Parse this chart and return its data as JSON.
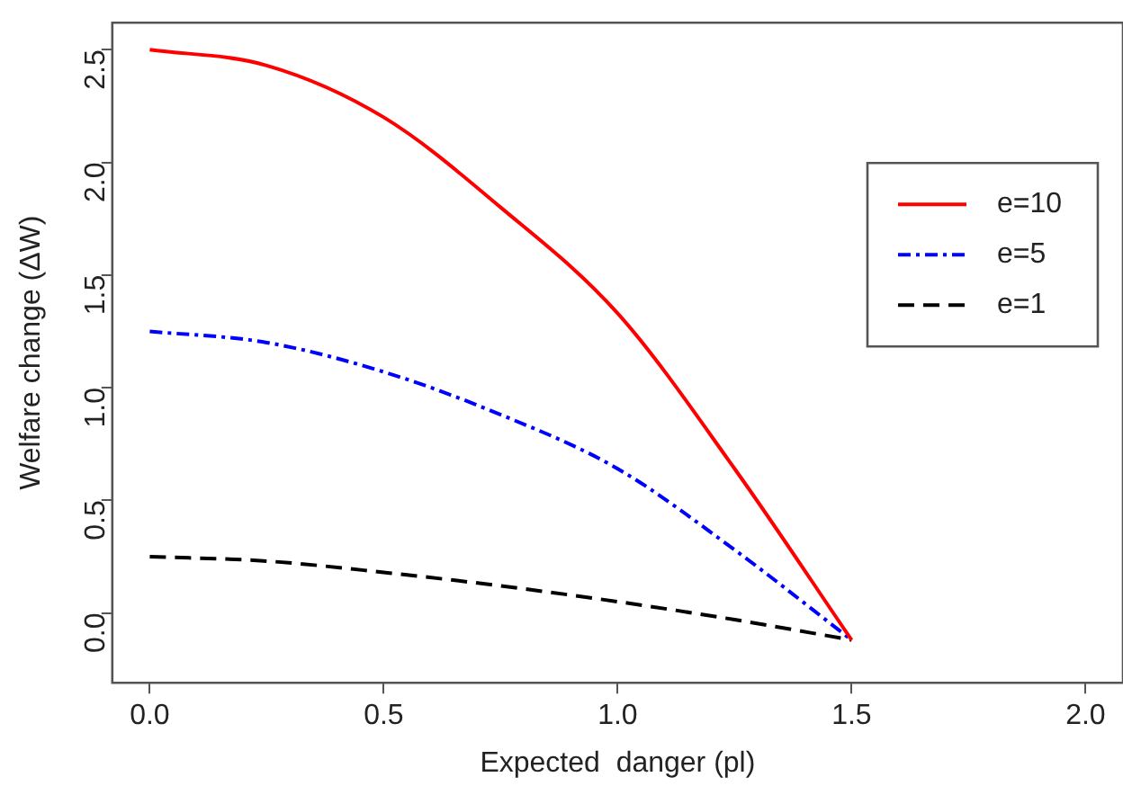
{
  "chart_data": {
    "type": "line",
    "xlabel": "Expected  danger (pl)",
    "ylabel": "Welfare change (ΔW)",
    "x": [
      0,
      0.25,
      0.5,
      0.75,
      1.0,
      1.25,
      1.5
    ],
    "series": [
      {
        "name": "e=10",
        "color": "#ff0000",
        "line_style": "solid",
        "values": [
          2.5,
          2.43,
          2.2,
          1.8,
          1.33,
          0.64,
          -0.12
        ]
      },
      {
        "name": "e=5",
        "color": "#0000ff",
        "line_style": "dotted",
        "values": [
          1.25,
          1.2,
          1.07,
          0.88,
          0.64,
          0.28,
          -0.12
        ]
      },
      {
        "name": "e=1",
        "color": "#000000",
        "line_style": "dashed",
        "values": [
          0.25,
          0.23,
          0.18,
          0.12,
          0.05,
          -0.03,
          -0.12
        ]
      }
    ],
    "xlim": [
      -0.08,
      2.08
    ],
    "xticks": [
      {
        "value": 0,
        "label": "0.0"
      },
      0.5,
      {
        "value": 1,
        "label": "1.0"
      },
      1.5,
      {
        "value": 2,
        "label": "2.0"
      }
    ],
    "ylim": [
      -0.31,
      2.62
    ],
    "yticks": [
      {
        "value": 0,
        "label": "0.0"
      },
      0.5,
      {
        "value": 1,
        "label": "1.0"
      },
      1.5,
      {
        "value": 2,
        "label": "2.0"
      },
      2.5
    ],
    "grid": false,
    "legend": "top right",
    "marker": "none"
  }
}
